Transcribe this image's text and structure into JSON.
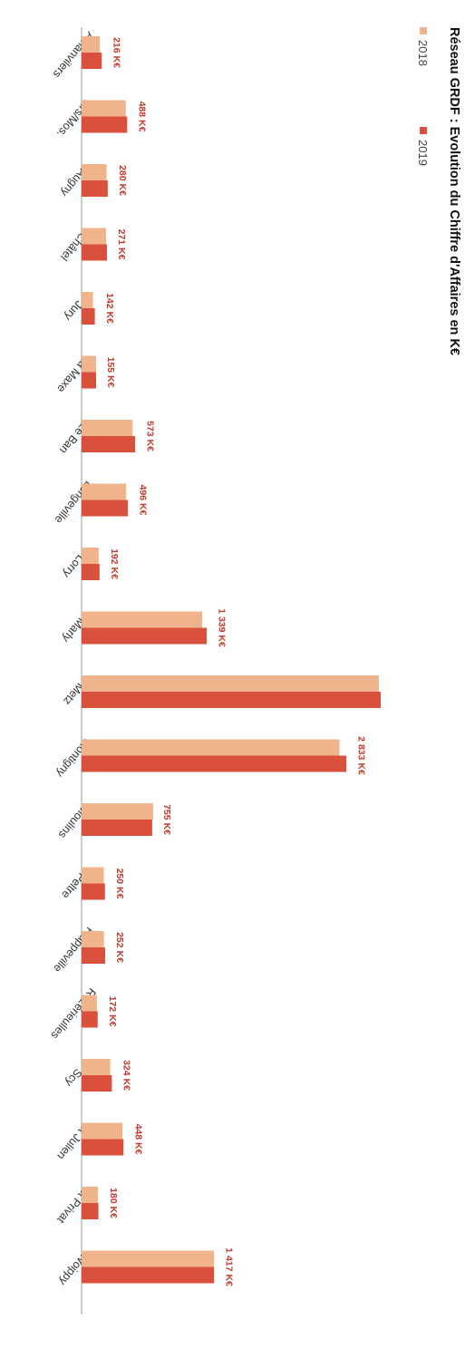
{
  "chart_data": {
    "type": "bar",
    "orientation": "horizontal",
    "title": "Réseau GRDF : Evolution du Chiffre d'Affaires en K€",
    "categories": [
      "Amanvilers",
      "Ars/Mos.",
      "Augny",
      "Châtel",
      "Jury",
      "La Maxe",
      "Le Ban",
      "Longeville",
      "Lorry",
      "Marly",
      "Metz",
      "Montigny",
      "Moulins",
      "Peltre",
      "Plappeville",
      "Rozérieulles",
      "Scy",
      "St Julien",
      "St Privat",
      "Woippy"
    ],
    "series": [
      {
        "name": "2018",
        "color": "#f0b48c",
        "values": [
          196,
          473,
          268,
          261,
          122,
          155,
          546,
          477,
          183,
          1290,
          3180,
          2760,
          765,
          237,
          239,
          164,
          307,
          437,
          175,
          1417
        ]
      },
      {
        "name": "2019",
        "color": "#d9503c",
        "values": [
          216,
          488,
          280,
          271,
          142,
          155,
          573,
          496,
          192,
          1339,
          3200,
          2833,
          755,
          250,
          252,
          172,
          324,
          448,
          180,
          1417
        ]
      }
    ],
    "data_labels": [
      "216 K€",
      "488 K€",
      "280 K€",
      "271 K€",
      "142 K€",
      "155 K€",
      "573 K€",
      "496 K€",
      "192 K€",
      "1 339 K€",
      "",
      "2 833 K€",
      "755 K€",
      "250 K€",
      "252 K€",
      "172 K€",
      "324 K€",
      "448 K€",
      "180 K€",
      "1 417 K€"
    ],
    "legend": {
      "position": "top-right"
    },
    "grid": false
  }
}
